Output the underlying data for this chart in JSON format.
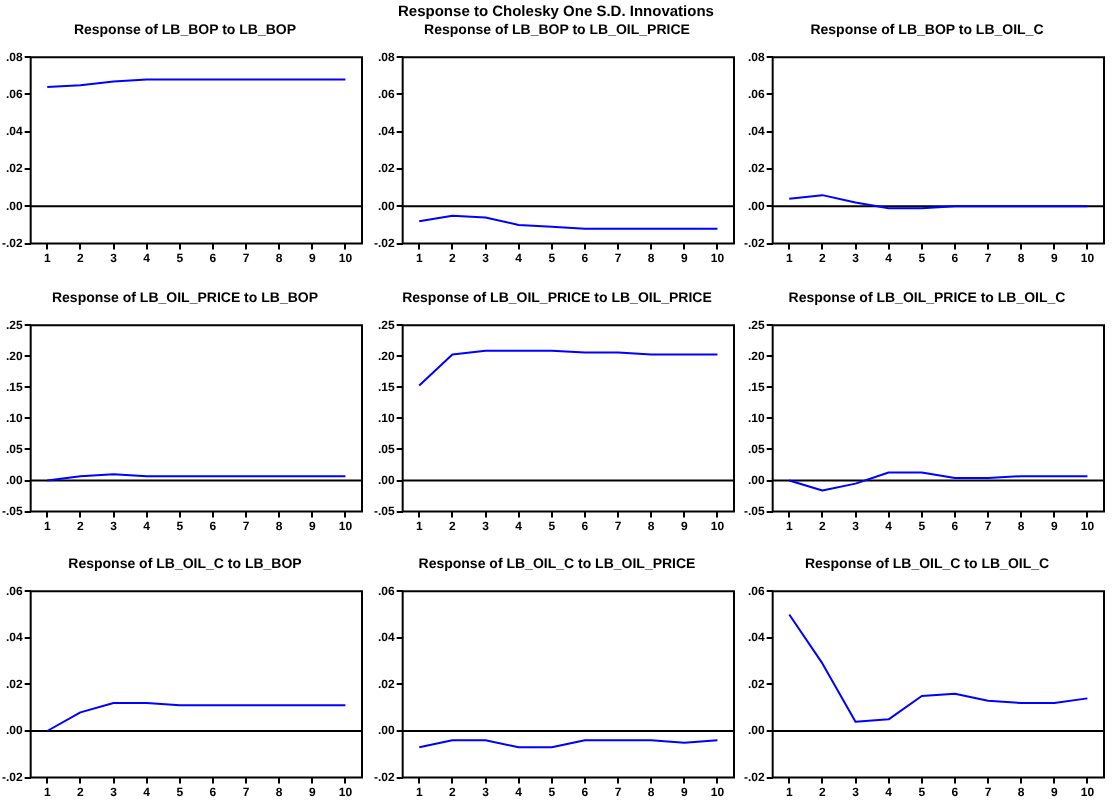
{
  "chart_data": [
    {
      "type": "line",
      "title": "Response of LB_BOP to LB_BOP",
      "annotations": [
        "Response to Cholesky One S.D. Innovations"
      ],
      "categories": [
        "1",
        "2",
        "3",
        "4",
        "5",
        "6",
        "7",
        "8",
        "9",
        "10"
      ],
      "series": [
        {
          "color": "#0000ff",
          "values": [
            0.064,
            0.065,
            0.067,
            0.068,
            0.068,
            0.068,
            0.068,
            0.068,
            0.068,
            0.068
          ]
        }
      ],
      "ylim": [
        -0.02,
        0.08
      ],
      "yticks": [
        {
          "value": -0.02,
          "label": "-.02"
        },
        {
          "value": 0,
          "label": ".00"
        },
        {
          "value": 0.02,
          "label": ".02"
        },
        {
          "value": 0.04,
          "label": ".04"
        },
        {
          "value": 0.06,
          "label": ".06"
        },
        {
          "value": 0.08,
          "label": ".08"
        }
      ],
      "ref_lines": [
        {
          "axis": "y",
          "value": 0,
          "color": "#000000"
        }
      ],
      "grid": false,
      "legend": false
    },
    {
      "type": "line",
      "title": "Response of LB_BOP to LB_OIL_PRICE",
      "categories": [
        "1",
        "2",
        "3",
        "4",
        "5",
        "6",
        "7",
        "8",
        "9",
        "10"
      ],
      "series": [
        {
          "color": "#0000ff",
          "values": [
            -0.008,
            -0.005,
            -0.006,
            -0.01,
            -0.011,
            -0.012,
            -0.012,
            -0.012,
            -0.012,
            -0.012
          ]
        }
      ],
      "ylim": [
        -0.02,
        0.08
      ],
      "yticks": [
        {
          "value": -0.02,
          "label": "-.02"
        },
        {
          "value": 0,
          "label": ".00"
        },
        {
          "value": 0.02,
          "label": ".02"
        },
        {
          "value": 0.04,
          "label": ".04"
        },
        {
          "value": 0.06,
          "label": ".06"
        },
        {
          "value": 0.08,
          "label": ".08"
        }
      ],
      "ref_lines": [
        {
          "axis": "y",
          "value": 0,
          "color": "#000000"
        }
      ],
      "grid": false,
      "legend": false
    },
    {
      "type": "line",
      "title": "Response of LB_BOP to LB_OIL_C",
      "categories": [
        "1",
        "2",
        "3",
        "4",
        "5",
        "6",
        "7",
        "8",
        "9",
        "10"
      ],
      "series": [
        {
          "color": "#0000ff",
          "values": [
            0.004,
            0.006,
            0.002,
            -0.001,
            -0.001,
            0,
            0,
            0,
            0,
            0
          ]
        }
      ],
      "ylim": [
        -0.02,
        0.08
      ],
      "yticks": [
        {
          "value": -0.02,
          "label": "-.02"
        },
        {
          "value": 0,
          "label": ".00"
        },
        {
          "value": 0.02,
          "label": ".02"
        },
        {
          "value": 0.04,
          "label": ".04"
        },
        {
          "value": 0.06,
          "label": ".06"
        },
        {
          "value": 0.08,
          "label": ".08"
        }
      ],
      "ref_lines": [
        {
          "axis": "y",
          "value": 0,
          "color": "#000000"
        }
      ],
      "grid": false,
      "legend": false
    },
    {
      "type": "line",
      "title": "Response of LB_OIL_PRICE to LB_BOP",
      "categories": [
        "1",
        "2",
        "3",
        "4",
        "5",
        "6",
        "7",
        "8",
        "9",
        "10"
      ],
      "series": [
        {
          "color": "#0000ff",
          "values": [
            0,
            0.007,
            0.01,
            0.007,
            0.007,
            0.007,
            0.007,
            0.007,
            0.007,
            0.007
          ]
        }
      ],
      "ylim": [
        -0.05,
        0.25
      ],
      "yticks": [
        {
          "value": -0.05,
          "label": "-.05"
        },
        {
          "value": 0,
          "label": ".00"
        },
        {
          "value": 0.05,
          "label": ".05"
        },
        {
          "value": 0.1,
          "label": ".10"
        },
        {
          "value": 0.15,
          "label": ".15"
        },
        {
          "value": 0.2,
          "label": ".20"
        },
        {
          "value": 0.25,
          "label": ".25"
        }
      ],
      "ref_lines": [
        {
          "axis": "y",
          "value": 0,
          "color": "#000000"
        }
      ],
      "grid": false,
      "legend": false
    },
    {
      "type": "line",
      "title": "Response of LB_OIL_PRICE to LB_OIL_PRICE",
      "categories": [
        "1",
        "2",
        "3",
        "4",
        "5",
        "6",
        "7",
        "8",
        "9",
        "10"
      ],
      "series": [
        {
          "color": "#0000ff",
          "values": [
            0.153,
            0.203,
            0.209,
            0.209,
            0.209,
            0.206,
            0.206,
            0.203,
            0.203,
            0.203
          ]
        }
      ],
      "ylim": [
        -0.05,
        0.25
      ],
      "yticks": [
        {
          "value": -0.05,
          "label": "-.05"
        },
        {
          "value": 0,
          "label": ".00"
        },
        {
          "value": 0.05,
          "label": ".05"
        },
        {
          "value": 0.1,
          "label": ".10"
        },
        {
          "value": 0.15,
          "label": ".15"
        },
        {
          "value": 0.2,
          "label": ".20"
        },
        {
          "value": 0.25,
          "label": ".25"
        }
      ],
      "ref_lines": [
        {
          "axis": "y",
          "value": 0,
          "color": "#000000"
        }
      ],
      "grid": false,
      "legend": false
    },
    {
      "type": "line",
      "title": "Response of LB_OIL_PRICE to LB_OIL_C",
      "categories": [
        "1",
        "2",
        "3",
        "4",
        "5",
        "6",
        "7",
        "8",
        "9",
        "10"
      ],
      "series": [
        {
          "color": "#0000ff",
          "values": [
            0,
            -0.016,
            -0.005,
            0.013,
            0.013,
            0.004,
            0.004,
            0.007,
            0.007,
            0.007
          ]
        }
      ],
      "ylim": [
        -0.05,
        0.25
      ],
      "yticks": [
        {
          "value": -0.05,
          "label": "-.05"
        },
        {
          "value": 0,
          "label": ".00"
        },
        {
          "value": 0.05,
          "label": ".05"
        },
        {
          "value": 0.1,
          "label": ".10"
        },
        {
          "value": 0.15,
          "label": ".15"
        },
        {
          "value": 0.2,
          "label": ".20"
        },
        {
          "value": 0.25,
          "label": ".25"
        }
      ],
      "ref_lines": [
        {
          "axis": "y",
          "value": 0,
          "color": "#000000"
        }
      ],
      "grid": false,
      "legend": false
    },
    {
      "type": "line",
      "title": "Response of LB_OIL_C to LB_BOP",
      "categories": [
        "1",
        "2",
        "3",
        "4",
        "5",
        "6",
        "7",
        "8",
        "9",
        "10"
      ],
      "series": [
        {
          "color": "#0000ff",
          "values": [
            0,
            0.008,
            0.012,
            0.012,
            0.011,
            0.011,
            0.011,
            0.011,
            0.011,
            0.011
          ]
        }
      ],
      "ylim": [
        -0.02,
        0.06
      ],
      "yticks": [
        {
          "value": -0.02,
          "label": "-.02"
        },
        {
          "value": 0,
          "label": ".00"
        },
        {
          "value": 0.02,
          "label": ".02"
        },
        {
          "value": 0.04,
          "label": ".04"
        },
        {
          "value": 0.06,
          "label": ".06"
        }
      ],
      "ref_lines": [
        {
          "axis": "y",
          "value": 0,
          "color": "#000000"
        }
      ],
      "grid": false,
      "legend": false
    },
    {
      "type": "line",
      "title": "Response of LB_OIL_C to LB_OIL_PRICE",
      "categories": [
        "1",
        "2",
        "3",
        "4",
        "5",
        "6",
        "7",
        "8",
        "9",
        "10"
      ],
      "series": [
        {
          "color": "#0000ff",
          "values": [
            -0.007,
            -0.004,
            -0.004,
            -0.007,
            -0.007,
            -0.004,
            -0.004,
            -0.004,
            -0.005,
            -0.004
          ]
        }
      ],
      "ylim": [
        -0.02,
        0.06
      ],
      "yticks": [
        {
          "value": -0.02,
          "label": "-.02"
        },
        {
          "value": 0,
          "label": ".00"
        },
        {
          "value": 0.02,
          "label": ".02"
        },
        {
          "value": 0.04,
          "label": ".04"
        },
        {
          "value": 0.06,
          "label": ".06"
        }
      ],
      "ref_lines": [
        {
          "axis": "y",
          "value": 0,
          "color": "#000000"
        }
      ],
      "grid": false,
      "legend": false
    },
    {
      "type": "line",
      "title": "Response of LB_OIL_C to LB_OIL_C",
      "categories": [
        "1",
        "2",
        "3",
        "4",
        "5",
        "6",
        "7",
        "8",
        "9",
        "10"
      ],
      "series": [
        {
          "color": "#0000ff",
          "values": [
            0.05,
            0.029,
            0.004,
            0.005,
            0.015,
            0.016,
            0.013,
            0.012,
            0.012,
            0.014
          ]
        }
      ],
      "ylim": [
        -0.02,
        0.06
      ],
      "yticks": [
        {
          "value": -0.02,
          "label": "-.02"
        },
        {
          "value": 0,
          "label": ".00"
        },
        {
          "value": 0.02,
          "label": ".02"
        },
        {
          "value": 0.04,
          "label": ".04"
        },
        {
          "value": 0.06,
          "label": ".06"
        }
      ],
      "ref_lines": [
        {
          "axis": "y",
          "value": 0,
          "color": "#000000"
        }
      ],
      "grid": false,
      "legend": false
    }
  ]
}
